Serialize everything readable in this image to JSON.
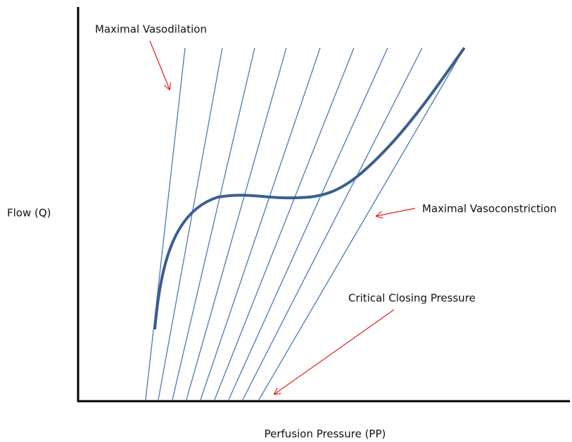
{
  "axes": {
    "x_label": "Perfusion Pressure (PP)",
    "y_label": "Flow (Q)"
  },
  "annotations": [
    "Maximal Vasodilation",
    "Maximal Vasoconstriction",
    "Critical Closing Pressure"
  ]
}
